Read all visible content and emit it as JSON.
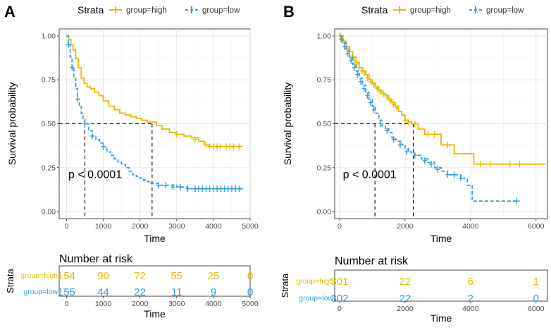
{
  "chart_data": [
    {
      "panel_label": "A",
      "type": "line",
      "subtype": "kaplan-meier",
      "legend": {
        "title": "Strata",
        "placement": "top",
        "entries": [
          "group=high",
          "group=low"
        ]
      },
      "colors": {
        "high": "#E7B800",
        "low": "#2E9FDF"
      },
      "xlabel": "Time",
      "ylabel": "Survival probability",
      "xlim": [
        -200,
        5000
      ],
      "ylim": [
        -0.04,
        1.04
      ],
      "xticks": [
        0,
        1000,
        2000,
        3000,
        4000,
        5000
      ],
      "xtick_labels": [
        "0",
        "1000",
        "2000",
        "3000",
        "4000",
        "5000"
      ],
      "yticks": [
        0,
        0.25,
        0.5,
        0.75,
        1
      ],
      "ytick_labels": [
        "0.00",
        "0.25",
        "0.50",
        "0.75",
        "1.00"
      ],
      "pvalue": "p < 0.0001",
      "pvalue_pos": [
        50,
        0.19
      ],
      "median_line": {
        "y": 0.5,
        "x_low": 500,
        "x_high": 2330
      },
      "series": [
        {
          "name": "group=high",
          "key": "high",
          "x": [
            0,
            60,
            120,
            180,
            250,
            320,
            400,
            480,
            560,
            650,
            760,
            880,
            1000,
            1150,
            1300,
            1450,
            1600,
            1750,
            1900,
            2050,
            2200,
            2330,
            2450,
            2600,
            2800,
            3000,
            3200,
            3400,
            3600,
            3750,
            3900,
            4100,
            4300,
            4500,
            4700,
            4800
          ],
          "y": [
            1.0,
            0.98,
            0.95,
            0.92,
            0.87,
            0.82,
            0.76,
            0.73,
            0.71,
            0.7,
            0.68,
            0.66,
            0.63,
            0.6,
            0.58,
            0.56,
            0.55,
            0.54,
            0.53,
            0.52,
            0.51,
            0.51,
            0.49,
            0.47,
            0.45,
            0.44,
            0.43,
            0.42,
            0.4,
            0.38,
            0.37,
            0.37,
            0.37,
            0.37,
            0.37,
            0.37
          ],
          "censor_x": [
            3000,
            3500,
            3800,
            3900,
            4000,
            4100,
            4200,
            4350,
            4450,
            4550,
            4700
          ],
          "censor_y": [
            0.44,
            0.41,
            0.38,
            0.37,
            0.37,
            0.37,
            0.37,
            0.37,
            0.37,
            0.37,
            0.37
          ]
        },
        {
          "name": "group=low",
          "key": "low",
          "x": [
            0,
            50,
            100,
            150,
            200,
            250,
            300,
            350,
            400,
            450,
            500,
            600,
            700,
            800,
            900,
            1000,
            1100,
            1200,
            1300,
            1400,
            1500,
            1600,
            1700,
            1800,
            1900,
            2000,
            2100,
            2200,
            2300,
            2500,
            2700,
            3000,
            3300,
            3600,
            4000,
            4400,
            4800
          ],
          "y": [
            1.0,
            0.95,
            0.88,
            0.82,
            0.76,
            0.7,
            0.64,
            0.6,
            0.56,
            0.53,
            0.5,
            0.46,
            0.43,
            0.41,
            0.39,
            0.37,
            0.34,
            0.32,
            0.3,
            0.28,
            0.27,
            0.25,
            0.23,
            0.21,
            0.2,
            0.19,
            0.18,
            0.17,
            0.16,
            0.15,
            0.15,
            0.14,
            0.13,
            0.13,
            0.13,
            0.13,
            0.13
          ],
          "censor_x": [
            50,
            150,
            300,
            500,
            700,
            1000,
            2500,
            2700,
            2900,
            3100,
            3300,
            3500,
            3600,
            3700,
            3800,
            3900,
            4000,
            4100,
            4200,
            4300,
            4400,
            4500,
            4600,
            4700
          ],
          "censor_y": [
            0.95,
            0.82,
            0.64,
            0.5,
            0.43,
            0.37,
            0.15,
            0.15,
            0.14,
            0.14,
            0.13,
            0.13,
            0.13,
            0.13,
            0.13,
            0.13,
            0.13,
            0.13,
            0.13,
            0.13,
            0.13,
            0.13,
            0.13,
            0.13
          ]
        }
      ],
      "risk_table": {
        "title": "Number at risk",
        "ylabel": "Strata",
        "xlabel": "Time",
        "times": [
          0,
          1000,
          2000,
          3000,
          4000,
          5000
        ],
        "time_labels": [
          "0",
          "1000",
          "2000",
          "3000",
          "4000",
          "5000"
        ],
        "rows": [
          {
            "label": "group=high",
            "key": "high",
            "values": [
              "154",
              "90",
              "72",
              "55",
              "25",
              "0"
            ]
          },
          {
            "label": "group=low",
            "key": "low",
            "values": [
              "155",
              "44",
              "22",
              "11",
              "9",
              "0"
            ]
          }
        ]
      }
    },
    {
      "panel_label": "B",
      "type": "line",
      "subtype": "kaplan-meier",
      "legend": {
        "title": "Strata",
        "placement": "top",
        "entries": [
          "group=high",
          "group=low"
        ]
      },
      "colors": {
        "high": "#E7B800",
        "low": "#2E9FDF"
      },
      "xlabel": "Time",
      "ylabel": "Survival probability",
      "xlim": [
        -150,
        6350
      ],
      "ylim": [
        -0.04,
        1.04
      ],
      "xticks": [
        0,
        2000,
        4000,
        6000
      ],
      "xtick_labels": [
        "0",
        "2000",
        "4000",
        "6000"
      ],
      "yticks": [
        0,
        0.25,
        0.5,
        0.75,
        1
      ],
      "ytick_labels": [
        "0.00",
        "0.25",
        "0.50",
        "0.75",
        "1.00"
      ],
      "pvalue": "p < 0.0001",
      "pvalue_pos": [
        100,
        0.19
      ],
      "median_line": {
        "y": 0.5,
        "x_low": 1080,
        "x_high": 2250
      },
      "series": [
        {
          "name": "group=high",
          "key": "high",
          "x": [
            0,
            100,
            200,
            300,
            400,
            500,
            600,
            700,
            800,
            900,
            1000,
            1100,
            1200,
            1300,
            1400,
            1500,
            1600,
            1700,
            1800,
            1900,
            2000,
            2100,
            2200,
            2400,
            2600,
            2900,
            3100,
            3300,
            3500,
            3800,
            4100,
            6300
          ],
          "y": [
            1.0,
            0.97,
            0.94,
            0.91,
            0.88,
            0.85,
            0.82,
            0.8,
            0.78,
            0.75,
            0.73,
            0.71,
            0.69,
            0.67,
            0.66,
            0.64,
            0.62,
            0.6,
            0.57,
            0.55,
            0.52,
            0.51,
            0.5,
            0.47,
            0.44,
            0.44,
            0.38,
            0.38,
            0.33,
            0.33,
            0.27,
            0.27
          ],
          "censor_x": [
            30,
            80,
            150,
            220,
            300,
            380,
            450,
            520,
            600,
            680,
            760,
            850,
            950,
            1050,
            1150,
            1250,
            1350,
            1450,
            1550,
            1650,
            1750,
            2000,
            2100,
            2300,
            2700,
            2900,
            3300,
            4300,
            4600,
            5200,
            5500
          ],
          "censor_y": [
            1.0,
            0.98,
            0.96,
            0.93,
            0.91,
            0.88,
            0.86,
            0.84,
            0.82,
            0.8,
            0.79,
            0.76,
            0.74,
            0.72,
            0.7,
            0.68,
            0.67,
            0.65,
            0.63,
            0.61,
            0.59,
            0.52,
            0.51,
            0.5,
            0.44,
            0.44,
            0.38,
            0.27,
            0.27,
            0.27,
            0.27
          ]
        },
        {
          "name": "group=low",
          "key": "low",
          "x": [
            0,
            100,
            200,
            300,
            400,
            500,
            600,
            700,
            800,
            900,
            1000,
            1100,
            1200,
            1300,
            1400,
            1500,
            1600,
            1700,
            1800,
            1900,
            2000,
            2100,
            2200,
            2300,
            2500,
            2700,
            2900,
            3100,
            3300,
            3500,
            3700,
            3900,
            4050,
            4500,
            5500
          ],
          "y": [
            1.0,
            0.96,
            0.92,
            0.88,
            0.84,
            0.8,
            0.76,
            0.72,
            0.68,
            0.64,
            0.6,
            0.56,
            0.52,
            0.49,
            0.47,
            0.45,
            0.42,
            0.41,
            0.4,
            0.38,
            0.36,
            0.34,
            0.33,
            0.32,
            0.3,
            0.28,
            0.25,
            0.23,
            0.21,
            0.21,
            0.19,
            0.15,
            0.06,
            0.06,
            0.06
          ],
          "censor_x": [
            50,
            150,
            250,
            350,
            450,
            550,
            650,
            750,
            850,
            950,
            1050,
            1250,
            1450,
            1650,
            1850,
            2050,
            2300,
            2600,
            2800,
            3000,
            3300,
            3500,
            3700,
            5400
          ],
          "censor_y": [
            0.98,
            0.94,
            0.9,
            0.86,
            0.82,
            0.78,
            0.74,
            0.7,
            0.66,
            0.62,
            0.58,
            0.5,
            0.46,
            0.41,
            0.38,
            0.34,
            0.32,
            0.29,
            0.27,
            0.24,
            0.21,
            0.21,
            0.19,
            0.06
          ]
        }
      ],
      "risk_table": {
        "title": "Number at risk",
        "ylabel": "Strata",
        "xlabel": "Time",
        "times": [
          0,
          2000,
          4000,
          6000
        ],
        "time_labels": [
          "0",
          "2000",
          "4000",
          "6000"
        ],
        "rows": [
          {
            "label": "group=high",
            "key": "high",
            "values": [
              "301",
              "22",
              "6",
              "1"
            ]
          },
          {
            "label": "group=low",
            "key": "low",
            "values": [
              "302",
              "22",
              "2",
              "0"
            ]
          }
        ]
      }
    }
  ]
}
